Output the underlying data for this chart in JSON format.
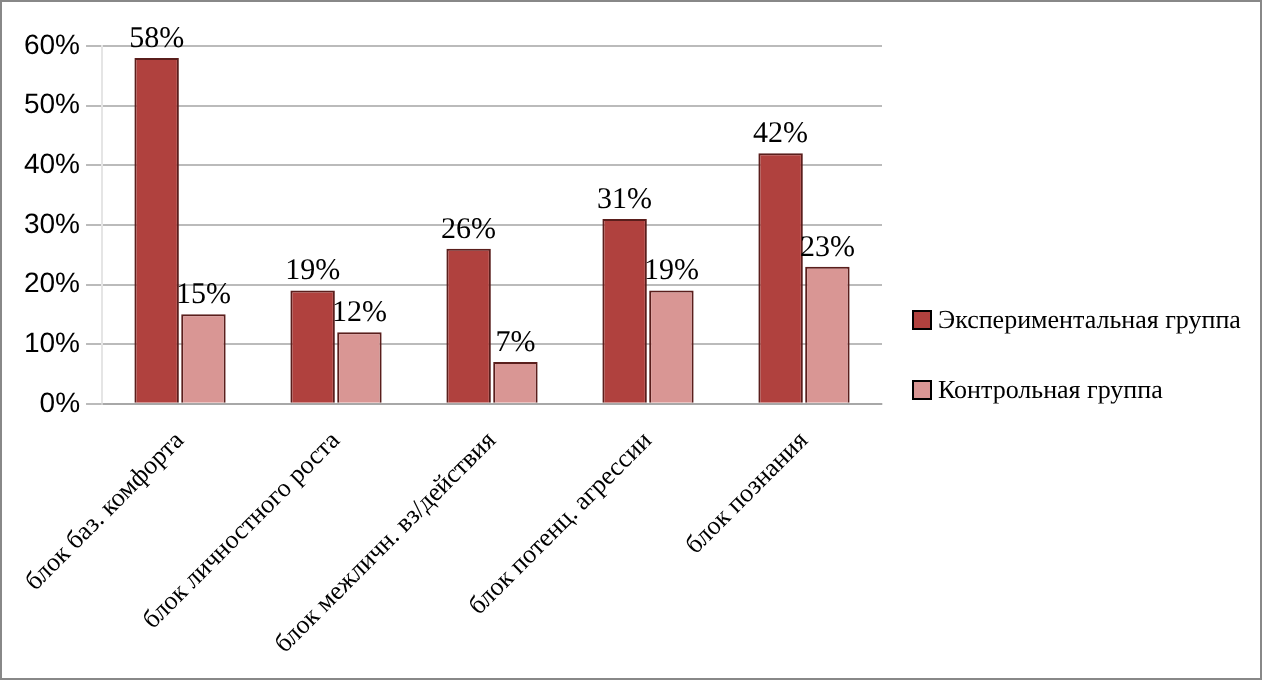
{
  "chart_data": {
    "type": "bar",
    "categories": [
      "блок баз. комфорта",
      "блок личностного роста",
      "блок межличн. вз/действия",
      "блок потенц. агрессии",
      "блок познания"
    ],
    "series": [
      {
        "name": "Экспериментальная группа",
        "color": "#b0413e",
        "values": [
          58,
          19,
          26,
          31,
          42
        ],
        "value_labels": [
          "58%",
          "19%",
          "26%",
          "31%",
          "42%"
        ]
      },
      {
        "name": "Контрольная группа",
        "color": "#d99694",
        "values": [
          15,
          12,
          7,
          19,
          23
        ],
        "value_labels": [
          "15%",
          "12%",
          "7%",
          "19%",
          "23%"
        ]
      }
    ],
    "ylim": [
      0,
      60
    ],
    "yticks": [
      {
        "value": 0,
        "label": "0%"
      },
      {
        "value": 10,
        "label": "10%"
      },
      {
        "value": 20,
        "label": "20%"
      },
      {
        "value": 30,
        "label": "30%"
      },
      {
        "value": 40,
        "label": "40%"
      },
      {
        "value": 50,
        "label": "50%"
      },
      {
        "value": 60,
        "label": "60%"
      }
    ],
    "grid": "y",
    "legend": "right"
  }
}
